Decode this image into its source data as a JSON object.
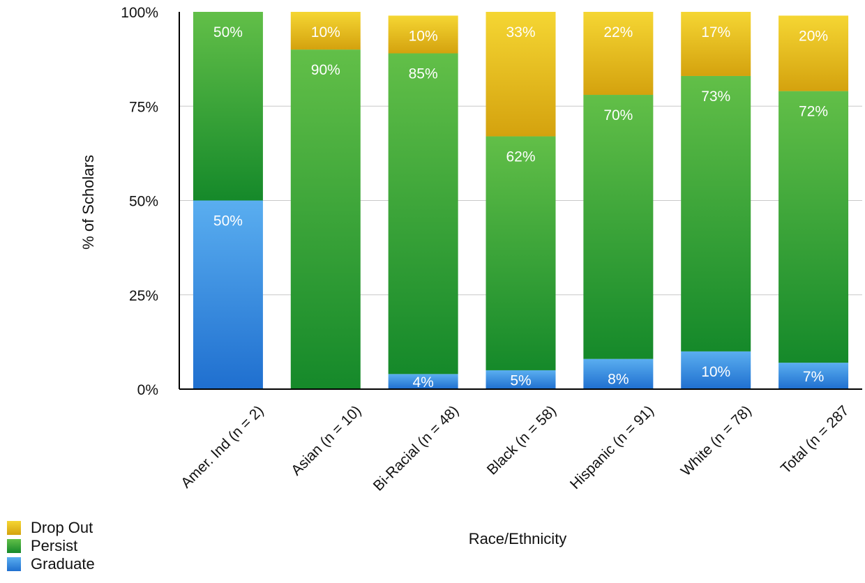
{
  "chart_data": {
    "type": "bar",
    "stacked": true,
    "percent": true,
    "xlabel": "Race/Ethnicity",
    "ylabel": "% of Scholars",
    "ylim": [
      0,
      100
    ],
    "yticks": [
      "0%",
      "25%",
      "50%",
      "75%",
      "100%"
    ],
    "grid": true,
    "legend_position": "bottom-left",
    "categories": [
      "Amer. Ind (n = 2)",
      "Asian (n = 10)",
      "Bi-Racial (n = 48)",
      "Black (n = 58)",
      "Hispanic (n = 91)",
      "White (n = 78)",
      "Total (n = 287"
    ],
    "series": [
      {
        "name": "Graduate",
        "color": "#3f93e0",
        "values": [
          50,
          0,
          4,
          5,
          8,
          10,
          7
        ],
        "labels": [
          "50%",
          "",
          "4%",
          "5%",
          "8%",
          "10%",
          "7%"
        ]
      },
      {
        "name": "Persist",
        "color": "#2fa33a",
        "values": [
          50,
          90,
          85,
          62,
          70,
          73,
          72
        ],
        "labels": [
          "50%",
          "90%",
          "85%",
          "62%",
          "70%",
          "73%",
          "72%"
        ]
      },
      {
        "name": "Drop Out",
        "color": "#e6b512",
        "values": [
          0,
          10,
          10,
          33,
          22,
          17,
          20
        ],
        "labels": [
          "",
          "10%",
          "10%",
          "33%",
          "22%",
          "17%",
          "20%"
        ]
      }
    ]
  },
  "legend": {
    "items": [
      {
        "label": "Drop Out",
        "color": "#e6b512"
      },
      {
        "label": "Persist",
        "color": "#2fa33a"
      },
      {
        "label": "Graduate",
        "color": "#3f93e0"
      }
    ]
  }
}
